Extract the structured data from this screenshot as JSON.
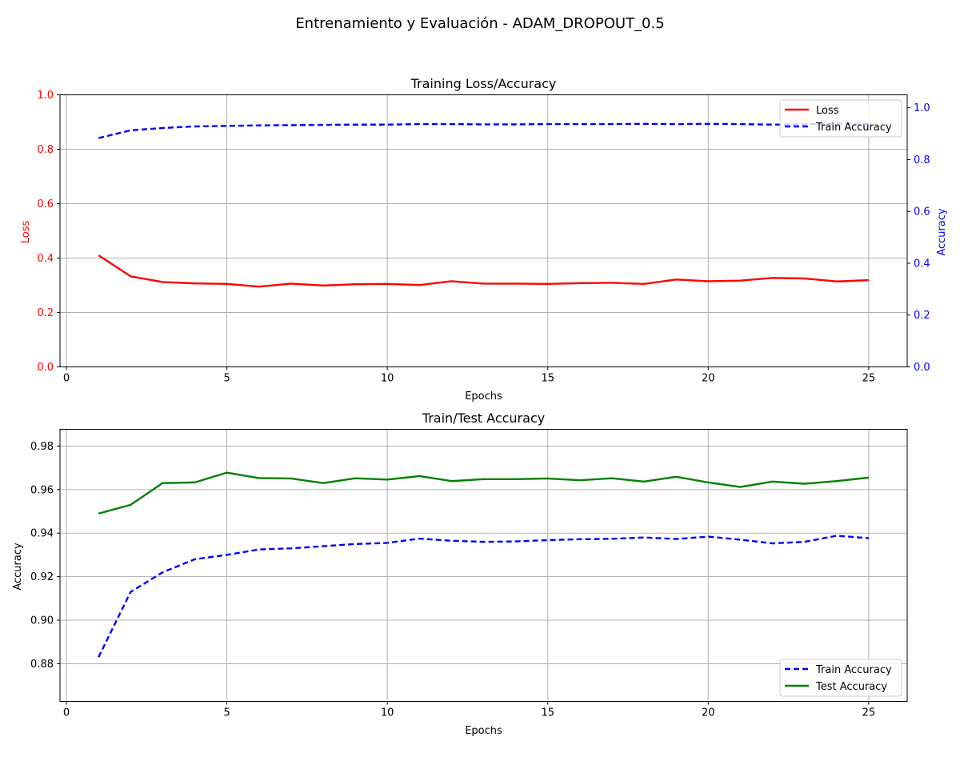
{
  "figure_title": "Entrenamiento y Evaluación - ADAM_DROPOUT_0.5",
  "colors": {
    "loss": "#ff0000",
    "train_accuracy": "#0000ff",
    "test_accuracy": "#008000",
    "grid": "#b0b0b0"
  },
  "chart_data": [
    {
      "type": "line",
      "title": "Training Loss/Accuracy",
      "xlabel": "Epochs",
      "ylabel": "Loss",
      "y2label": "Accuracy",
      "xlim": [
        -0.2,
        26.2
      ],
      "ylim": [
        0,
        1
      ],
      "y2lim": [
        0,
        1.05
      ],
      "xticks": [
        0,
        5,
        10,
        15,
        20,
        25
      ],
      "yticks": [
        0.0,
        0.2,
        0.4,
        0.6,
        0.8,
        1.0
      ],
      "y2ticks": [
        0.0,
        0.2,
        0.4,
        0.6,
        0.8,
        1.0
      ],
      "grid": true,
      "legend_position": "top-right",
      "x": [
        1,
        2,
        3,
        4,
        5,
        6,
        7,
        8,
        9,
        10,
        11,
        12,
        13,
        14,
        15,
        16,
        17,
        18,
        19,
        20,
        21,
        22,
        23,
        24,
        25
      ],
      "series": [
        {
          "name": "Loss",
          "axis": "left",
          "style": "solid",
          "color": "#ff0000",
          "values": [
            0.41,
            0.333,
            0.312,
            0.307,
            0.305,
            0.295,
            0.306,
            0.299,
            0.304,
            0.305,
            0.301,
            0.315,
            0.306,
            0.306,
            0.305,
            0.308,
            0.309,
            0.305,
            0.321,
            0.315,
            0.317,
            0.327,
            0.325,
            0.314,
            0.319
          ]
        },
        {
          "name": "Train Accuracy",
          "axis": "right",
          "style": "dashed",
          "color": "#0000ff",
          "values": [
            0.883,
            0.913,
            0.922,
            0.928,
            0.93,
            0.932,
            0.933,
            0.934,
            0.935,
            0.935,
            0.937,
            0.937,
            0.936,
            0.936,
            0.937,
            0.937,
            0.937,
            0.938,
            0.937,
            0.938,
            0.937,
            0.935,
            0.936,
            0.939,
            0.937
          ]
        }
      ],
      "xtick_labels": [
        "0",
        "5",
        "10",
        "15",
        "20",
        "25"
      ],
      "ytick_labels": [
        "0.0",
        "0.2",
        "0.4",
        "0.6",
        "0.8",
        "1.0"
      ],
      "y2tick_labels": [
        "0.0",
        "0.2",
        "0.4",
        "0.6",
        "0.8",
        "1.0"
      ]
    },
    {
      "type": "line",
      "title": "Train/Test Accuracy",
      "xlabel": "Epochs",
      "ylabel": "Accuracy",
      "xlim": [
        -0.2,
        26.2
      ],
      "ylim": [
        0.8627,
        0.9877
      ],
      "xticks": [
        0,
        5,
        10,
        15,
        20,
        25
      ],
      "yticks": [
        0.88,
        0.9,
        0.92,
        0.94,
        0.96,
        0.98
      ],
      "grid": true,
      "legend_position": "bottom-right",
      "x": [
        1,
        2,
        3,
        4,
        5,
        6,
        7,
        8,
        9,
        10,
        11,
        12,
        13,
        14,
        15,
        16,
        17,
        18,
        19,
        20,
        21,
        22,
        23,
        24,
        25
      ],
      "series": [
        {
          "name": "Train Accuracy",
          "style": "dashed",
          "color": "#0000ff",
          "values": [
            0.883,
            0.913,
            0.922,
            0.928,
            0.93,
            0.9325,
            0.933,
            0.934,
            0.935,
            0.9355,
            0.9375,
            0.9365,
            0.936,
            0.9362,
            0.9368,
            0.9372,
            0.9374,
            0.938,
            0.9373,
            0.9384,
            0.937,
            0.9353,
            0.936,
            0.9388,
            0.9377
          ]
        },
        {
          "name": "Test Accuracy",
          "style": "solid",
          "color": "#008000",
          "values": [
            0.949,
            0.953,
            0.963,
            0.9633,
            0.9678,
            0.9653,
            0.9651,
            0.963,
            0.9652,
            0.9646,
            0.9662,
            0.9639,
            0.9648,
            0.9648,
            0.9651,
            0.9643,
            0.9652,
            0.9637,
            0.9659,
            0.9633,
            0.9612,
            0.9637,
            0.9627,
            0.9639,
            0.9655
          ]
        }
      ],
      "xtick_labels": [
        "0",
        "5",
        "10",
        "15",
        "20",
        "25"
      ],
      "ytick_labels": [
        "0.88",
        "0.90",
        "0.92",
        "0.94",
        "0.96",
        "0.98"
      ]
    }
  ]
}
